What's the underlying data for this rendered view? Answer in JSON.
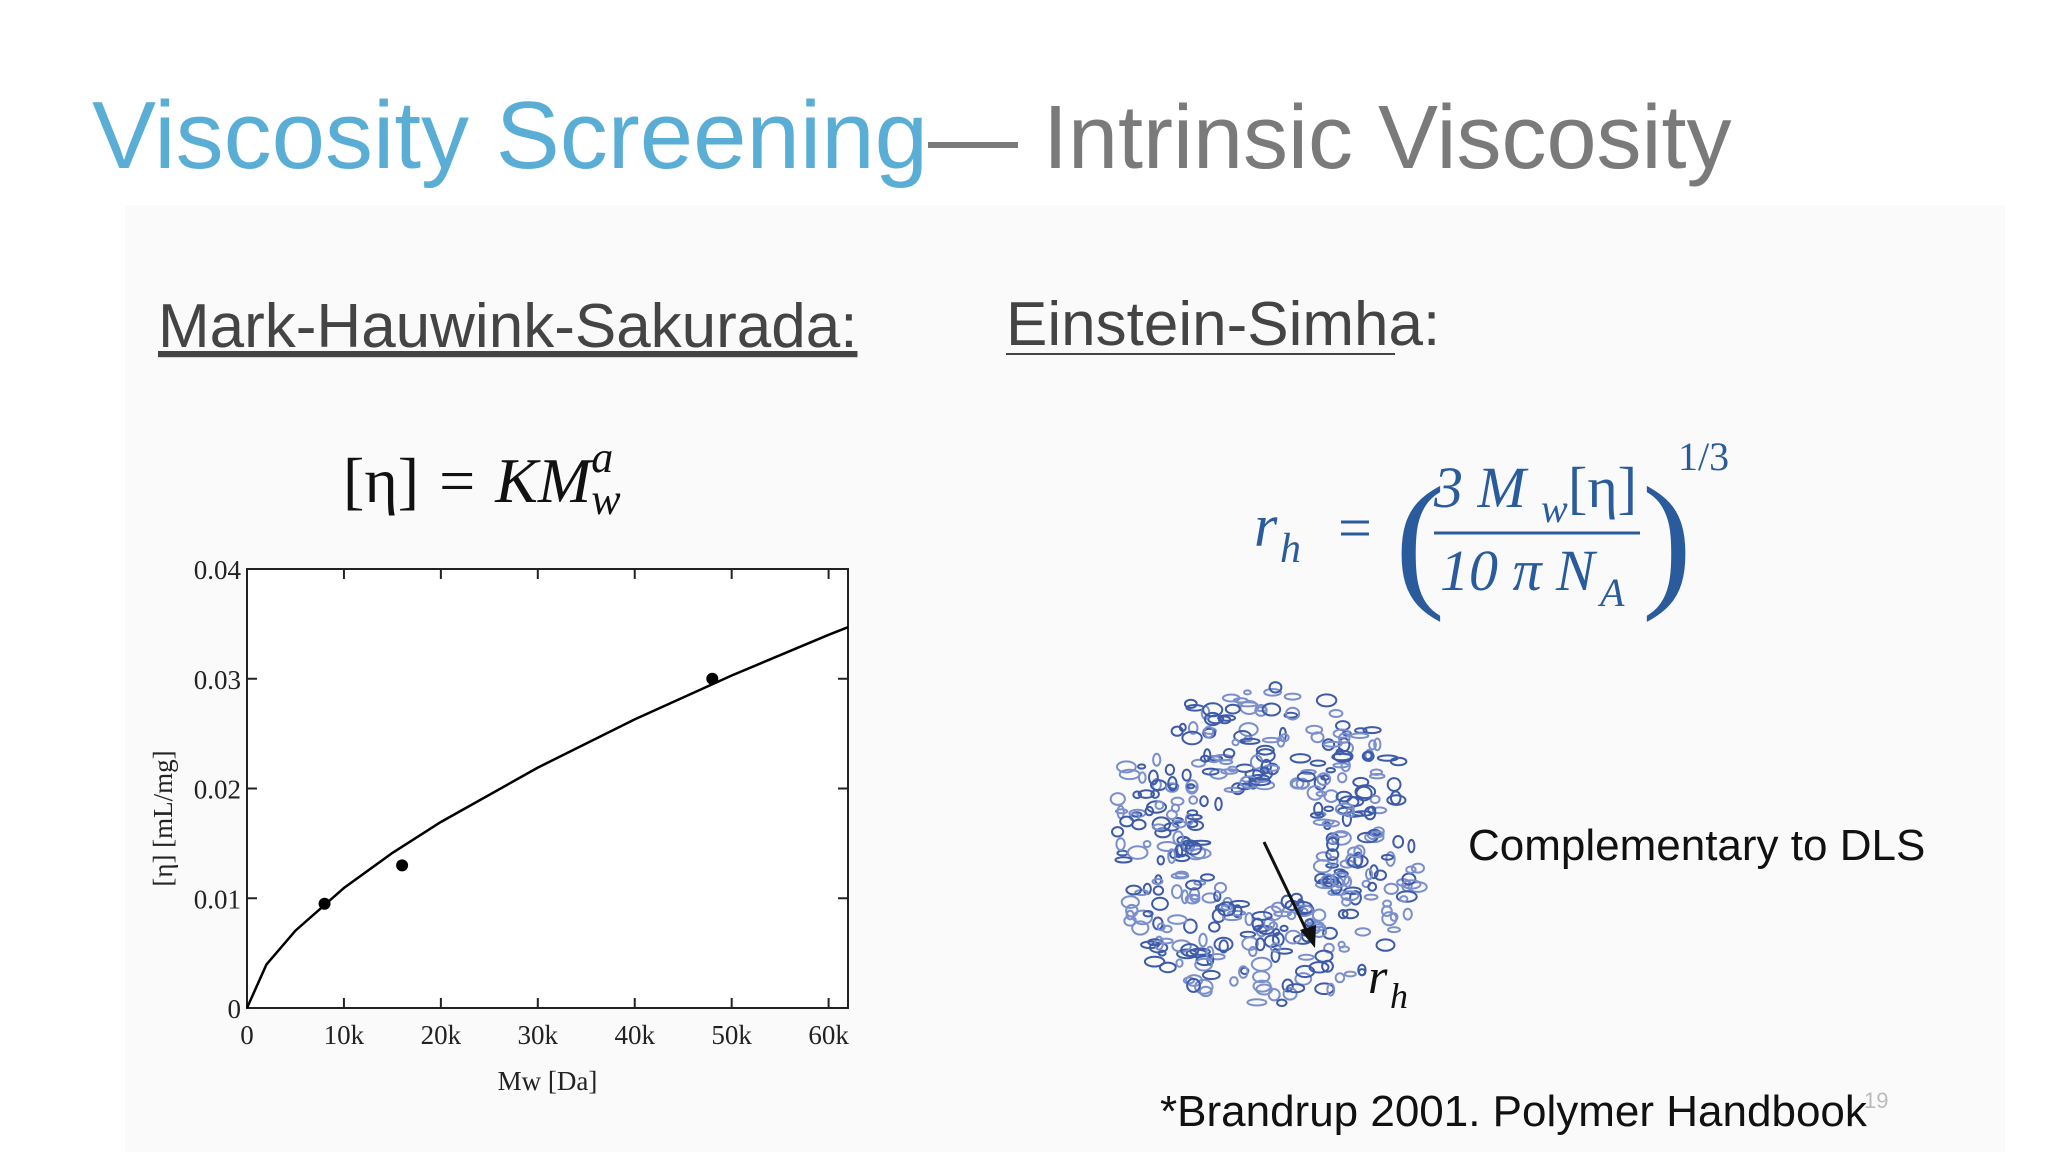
{
  "slide": {
    "title_main": "Viscosity Screening",
    "title_sub": "— Intrinsic Viscosity",
    "left_heading": "Mark-Hauwink-Sakurada:",
    "right_heading": "Einstein-Simha:",
    "eq1": {
      "lhs": "[η]",
      "eq": "=",
      "base": "KM",
      "sub": "w",
      "sup": "a"
    },
    "eq2": {
      "lhs": "r",
      "lhs_sub": "h",
      "eq": "=",
      "num_a": "3 M",
      "num_sub": "w",
      "num_b": "[η]",
      "den_a": "10 π N",
      "den_sub": "A",
      "exponent": "1/3"
    },
    "arrow_label": "r",
    "arrow_label_sub": "h",
    "note": "Complementary to DLS",
    "footnote": "*Brandrup 2001. Polymer Handbook",
    "page_number": "19"
  },
  "chart_data": {
    "type": "scatter",
    "ylabel": "[η]  [mL/mg]",
    "xlabel": "Mw [Da]",
    "xlim": [
      0,
      62000
    ],
    "ylim": [
      0,
      0.04
    ],
    "xticks": [
      0,
      {
        "value": 10000,
        "label": "10k"
      },
      {
        "value": 20000,
        "label": "20k"
      },
      {
        "value": 30000,
        "label": "30k"
      },
      {
        "value": 40000,
        "label": "40k"
      },
      {
        "value": 50000,
        "label": "50k"
      },
      {
        "value": 60000,
        "label": "60k"
      }
    ],
    "yticks": [
      0,
      0.01,
      0.02,
      0.03,
      0.04
    ],
    "series": [
      {
        "type": "scatter",
        "color": "#000000",
        "x": [
          8000,
          16000,
          48000
        ],
        "values": [
          0.0095,
          0.013,
          0.03
        ]
      },
      {
        "type": "line",
        "color": "#000000",
        "x": [
          0,
          2000,
          5000,
          10000,
          15000,
          20000,
          30000,
          40000,
          50000,
          60000,
          62000
        ],
        "values": [
          0,
          0.00395,
          0.00705,
          0.01093,
          0.01413,
          0.01695,
          0.0219,
          0.0263,
          0.0303,
          0.034,
          0.0347
        ]
      }
    ]
  }
}
